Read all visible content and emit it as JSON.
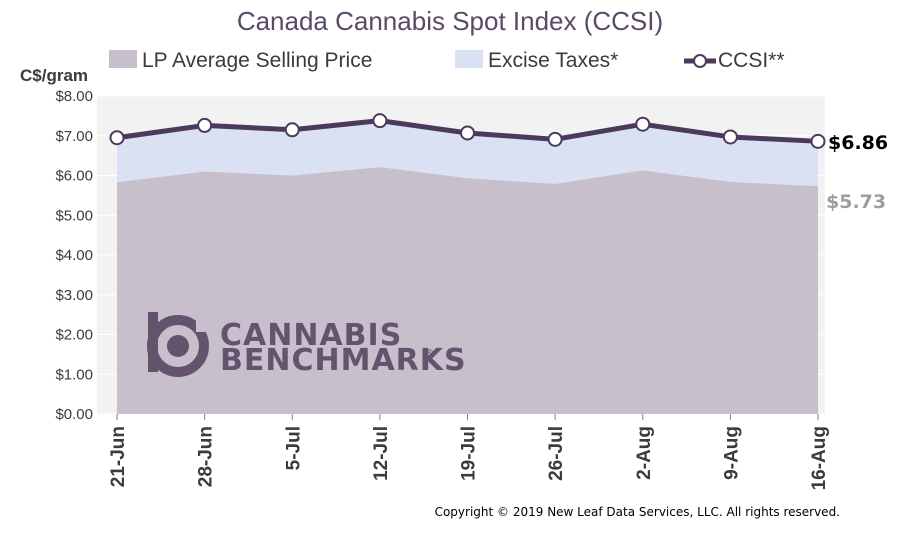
{
  "chart_data": {
    "type": "area",
    "title": "Canada Cannabis Spot Index (CCSI)",
    "ylabel": "C$/gram",
    "ylim": [
      0,
      8
    ],
    "yticks": [
      "$0.00",
      "$1.00",
      "$2.00",
      "$3.00",
      "$4.00",
      "$5.00",
      "$6.00",
      "$7.00",
      "$8.00"
    ],
    "yvalues": [
      0,
      1,
      2,
      3,
      4,
      5,
      6,
      7,
      8
    ],
    "categories": [
      "21-Jun",
      "28-Jun",
      "5-Jul",
      "12-Jul",
      "19-Jul",
      "26-Jul",
      "2-Aug",
      "9-Aug",
      "16-Aug"
    ],
    "grid": true,
    "legend_position": "top",
    "series": [
      {
        "name": "LP Average Selling Price",
        "kind": "area",
        "color": "#c8bfcc",
        "values": [
          5.83,
          6.1,
          6.0,
          6.21,
          5.93,
          5.79,
          6.13,
          5.84,
          5.73
        ]
      },
      {
        "name": "Excise Taxes*",
        "kind": "stacked-area",
        "color": "#d9e1f2",
        "values": [
          1.12,
          1.16,
          1.15,
          1.17,
          1.14,
          1.12,
          1.16,
          1.13,
          1.13
        ]
      },
      {
        "name": "CCSI**",
        "kind": "line",
        "color": "#4b3a5c",
        "values": [
          6.95,
          7.26,
          7.15,
          7.38,
          7.07,
          6.91,
          7.29,
          6.97,
          6.86
        ]
      }
    ],
    "end_labels": {
      "ccsi": "$6.86",
      "lp": "$5.73"
    }
  },
  "logo": {
    "line1": "CANNABIS",
    "line2": "BENCHMARKS",
    "mark": "®"
  },
  "copyright": "Copyright © 2019 New Leaf Data Services, LLC. All rights reserved."
}
